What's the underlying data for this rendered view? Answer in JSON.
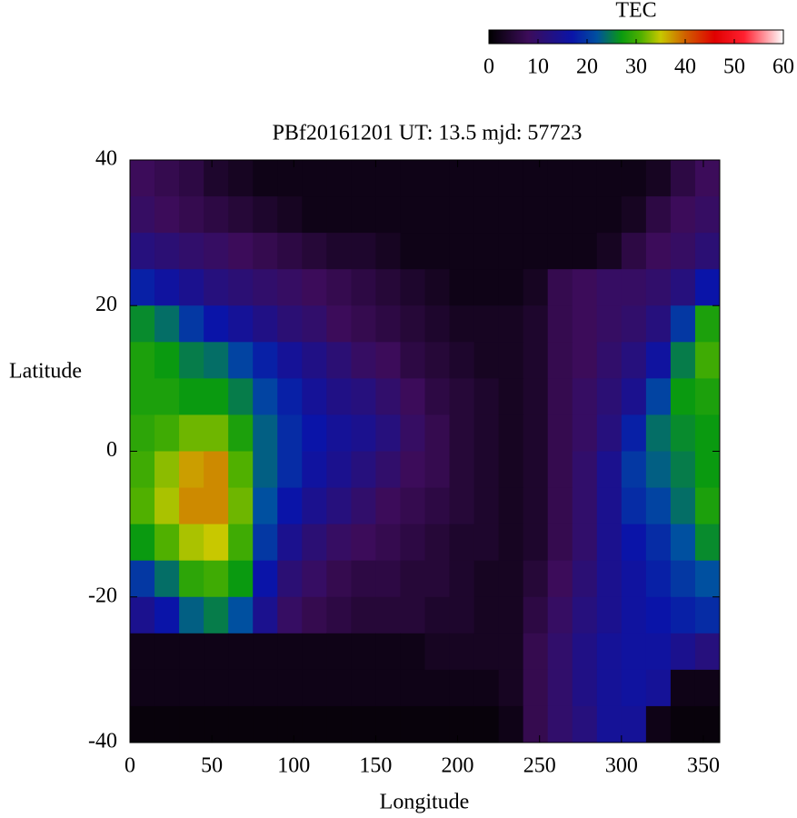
{
  "chart_data": {
    "type": "heatmap",
    "title": "PBf20161201  UT: 13.5  mjd: 57723",
    "x_label": "Longitude",
    "y_label": "Latitude",
    "colorbar_label": "TEC",
    "xbins": [
      0,
      15,
      30,
      45,
      60,
      75,
      90,
      105,
      120,
      135,
      150,
      165,
      180,
      195,
      210,
      225,
      240,
      255,
      270,
      285,
      300,
      315,
      330,
      345,
      360
    ],
    "ybins": [
      40,
      35,
      30,
      25,
      20,
      15,
      10,
      5,
      0,
      -5,
      -10,
      -15,
      -20,
      -25,
      -30,
      -35,
      -40
    ],
    "z": [
      [
        8,
        7,
        6,
        4,
        3,
        2,
        2,
        2,
        2,
        2,
        2,
        2,
        2,
        2,
        2,
        2,
        2,
        2,
        2,
        2,
        2,
        3,
        6,
        8
      ],
      [
        9,
        8,
        7,
        6,
        5,
        4,
        3,
        2,
        2,
        2,
        2,
        2,
        2,
        2,
        2,
        2,
        2,
        2,
        2,
        2,
        3,
        6,
        8,
        9
      ],
      [
        12,
        11,
        10,
        9,
        8,
        7,
        6,
        5,
        4,
        4,
        3,
        2,
        2,
        2,
        2,
        2,
        2,
        2,
        2,
        3,
        6,
        8,
        9,
        11
      ],
      [
        18,
        16,
        14,
        12,
        11,
        10,
        9,
        8,
        7,
        6,
        5,
        4,
        3,
        2,
        2,
        2,
        3,
        7,
        8,
        9,
        9,
        10,
        12,
        17
      ],
      [
        26,
        24,
        20,
        17,
        15,
        13,
        11,
        10,
        8,
        7,
        6,
        5,
        4,
        3,
        3,
        3,
        4,
        7,
        8,
        9,
        10,
        12,
        20,
        28
      ],
      [
        28,
        27,
        25,
        24,
        21,
        18,
        15,
        13,
        11,
        9,
        8,
        6,
        5,
        4,
        3,
        3,
        4,
        7,
        8,
        10,
        12,
        16,
        25,
        30
      ],
      [
        28,
        28,
        27,
        27,
        25,
        21,
        18,
        15,
        13,
        12,
        10,
        8,
        6,
        5,
        4,
        3,
        4,
        7,
        9,
        11,
        14,
        21,
        27,
        28
      ],
      [
        29,
        30,
        32,
        32,
        28,
        23,
        19,
        17,
        15,
        14,
        12,
        9,
        7,
        5,
        4,
        3,
        4,
        7,
        9,
        12,
        18,
        24,
        26,
        27
      ],
      [
        30,
        33,
        37,
        38,
        31,
        23,
        19,
        16,
        14,
        12,
        10,
        8,
        7,
        5,
        4,
        3,
        4,
        7,
        10,
        14,
        20,
        23,
        25,
        27
      ],
      [
        31,
        34,
        38,
        38,
        32,
        22,
        17,
        14,
        12,
        10,
        8,
        7,
        6,
        5,
        4,
        3,
        4,
        7,
        10,
        14,
        19,
        21,
        24,
        28
      ],
      [
        27,
        31,
        34,
        35,
        30,
        20,
        14,
        11,
        9,
        8,
        7,
        6,
        5,
        4,
        4,
        3,
        4,
        7,
        10,
        14,
        17,
        19,
        22,
        26
      ],
      [
        20,
        24,
        29,
        30,
        27,
        17,
        11,
        9,
        7,
        6,
        6,
        5,
        5,
        4,
        3,
        3,
        5,
        8,
        11,
        14,
        16,
        18,
        20,
        22
      ],
      [
        14,
        17,
        23,
        25,
        22,
        14,
        9,
        7,
        6,
        5,
        5,
        5,
        4,
        4,
        3,
        3,
        6,
        9,
        12,
        14,
        16,
        17,
        18,
        19
      ],
      [
        2,
        2,
        2,
        2,
        2,
        2,
        2,
        2,
        2,
        2,
        2,
        2,
        3,
        3,
        3,
        3,
        7,
        10,
        13,
        15,
        16,
        16,
        14,
        12
      ],
      [
        2,
        2,
        2,
        2,
        2,
        2,
        2,
        2,
        2,
        2,
        2,
        2,
        2,
        2,
        2,
        3,
        7,
        10,
        13,
        15,
        16,
        15,
        2,
        2
      ],
      [
        1,
        1,
        1,
        1,
        1,
        1,
        1,
        1,
        1,
        1,
        1,
        1,
        1,
        1,
        1,
        2,
        7,
        10,
        12,
        15,
        15,
        2,
        1,
        1
      ]
    ],
    "xlim": [
      0,
      360
    ],
    "ylim": [
      -40,
      40
    ],
    "xticks": [
      0,
      50,
      100,
      150,
      200,
      250,
      300,
      350
    ],
    "yticks": [
      -40,
      -20,
      0,
      20,
      40
    ],
    "clim": [
      0,
      60
    ],
    "cticks": [
      0,
      10,
      20,
      30,
      40,
      50,
      60
    ],
    "colorscale": [
      [
        0,
        "#000000"
      ],
      [
        8,
        "#3c0c5a"
      ],
      [
        17,
        "#0a14a8"
      ],
      [
        22,
        "#0050a0"
      ],
      [
        27,
        "#0a9a10"
      ],
      [
        31,
        "#50b000"
      ],
      [
        35,
        "#c8c800"
      ],
      [
        40,
        "#d06000"
      ],
      [
        46,
        "#e00000"
      ],
      [
        52,
        "#ff2030"
      ],
      [
        60,
        "#ffffff"
      ]
    ]
  }
}
